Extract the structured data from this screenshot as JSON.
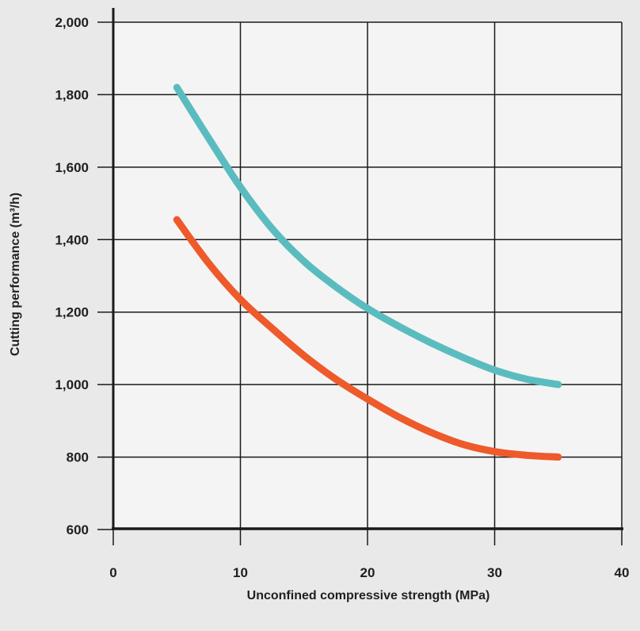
{
  "chart_data": {
    "type": "line",
    "title": "",
    "xlabel": "Unconfined compressive strength (MPa)",
    "ylabel": "Cutting performance (m³/h)",
    "xlim": [
      0,
      40
    ],
    "ylim": [
      600,
      2000
    ],
    "xticks": [
      0,
      10,
      20,
      30,
      40
    ],
    "xtick_labels": [
      "0",
      "10",
      "20",
      "30",
      "40"
    ],
    "yticks": [
      600,
      800,
      1000,
      1200,
      1400,
      1600,
      1800,
      2000
    ],
    "ytick_labels": [
      "600",
      "800",
      "1,000",
      "1,200",
      "1,400",
      "1,600",
      "1,800",
      "2,000"
    ],
    "grid": true,
    "legend": "none",
    "series": [
      {
        "color": "#5bbcbf",
        "x": [
          5,
          7.5,
          10,
          12.5,
          15,
          17.5,
          20,
          22.5,
          25,
          27.5,
          30,
          32.5,
          35
        ],
        "y": [
          1820,
          1680,
          1545,
          1430,
          1340,
          1270,
          1210,
          1160,
          1115,
          1075,
          1040,
          1015,
          1000
        ]
      },
      {
        "color": "#ee5a2a",
        "x": [
          5,
          7.5,
          10,
          12.5,
          15,
          17.5,
          20,
          22.5,
          25,
          27.5,
          30,
          32.5,
          35
        ],
        "y": [
          1455,
          1335,
          1235,
          1155,
          1080,
          1015,
          960,
          910,
          868,
          835,
          815,
          805,
          800
        ]
      }
    ]
  }
}
